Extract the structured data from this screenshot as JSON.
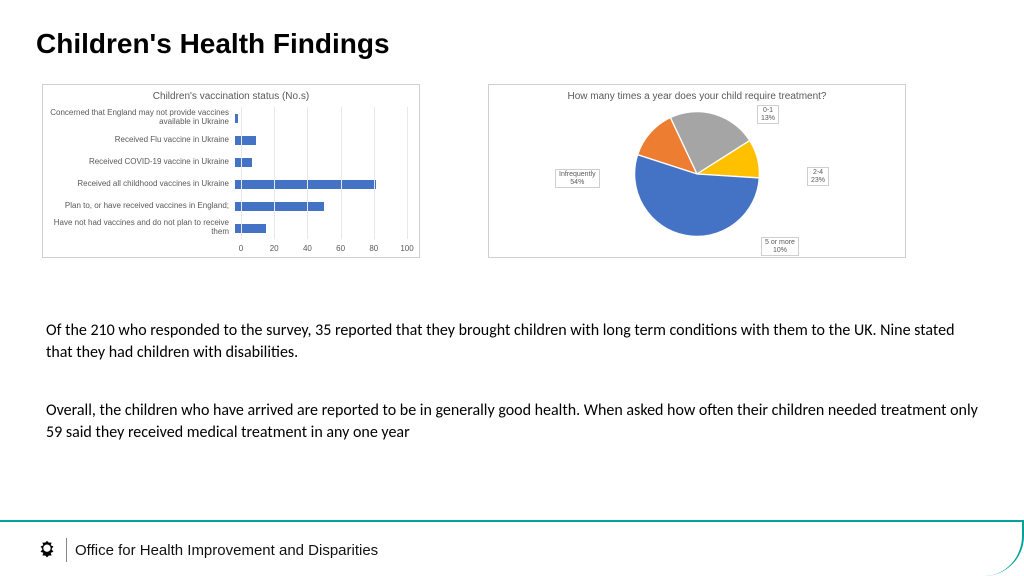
{
  "title": "Children's Health Findings",
  "bar_chart": {
    "type": "bar-horizontal",
    "title": "Children's vaccination status (No.s)",
    "bar_color": "#4472c4",
    "grid_color": "#e8e8e8",
    "label_color": "#595959",
    "title_fontsize": 10,
    "label_fontsize": 8,
    "xlim": [
      0,
      100
    ],
    "xtick_step": 20,
    "xticks": [
      "0",
      "20",
      "40",
      "60",
      "80",
      "100"
    ],
    "categories": [
      "Concerned that England may not provide vaccines available in Ukraine",
      "Received Flu vaccine in Ukraine",
      "Received COVID-19 vaccine in Ukraine",
      "Received all childhood vaccines in Ukraine",
      "Plan to, or have received vaccines in England;",
      "Have not had vaccines and do not plan to receive them"
    ],
    "values": [
      2,
      12,
      10,
      82,
      52,
      18
    ]
  },
  "pie_chart": {
    "type": "pie",
    "title": "How many times a year does your child require treatment?",
    "background_color": "#ffffff",
    "title_fontsize": 10,
    "label_fontsize": 7,
    "start_angle_deg": -72,
    "slices": [
      {
        "label": "0-1",
        "pct": 13,
        "label_text": "0-1\n13%",
        "color": "#ed7d31"
      },
      {
        "label": "2-4",
        "pct": 23,
        "label_text": "2-4\n23%",
        "color": "#a5a5a5"
      },
      {
        "label": "5 or more",
        "pct": 10,
        "label_text": "5 or more\n10%",
        "color": "#ffc000"
      },
      {
        "label": "Infrequently",
        "pct": 54,
        "label_text": "Infrequently\n54%",
        "color": "#4472c4"
      }
    ]
  },
  "paragraphs": {
    "p1": "Of the 210 who responded to the survey, 35 reported that they brought children with long term conditions with them to the UK.  Nine stated that they had children with disabilities.",
    "p2": "Overall, the children who have arrived are reported to be in generally good health.  When asked how often their children needed treatment only 59 said they received medical treatment in any one year"
  },
  "footer": {
    "org_name": "Office for Health Improvement and Disparities",
    "accent_color": "#00a29a"
  }
}
